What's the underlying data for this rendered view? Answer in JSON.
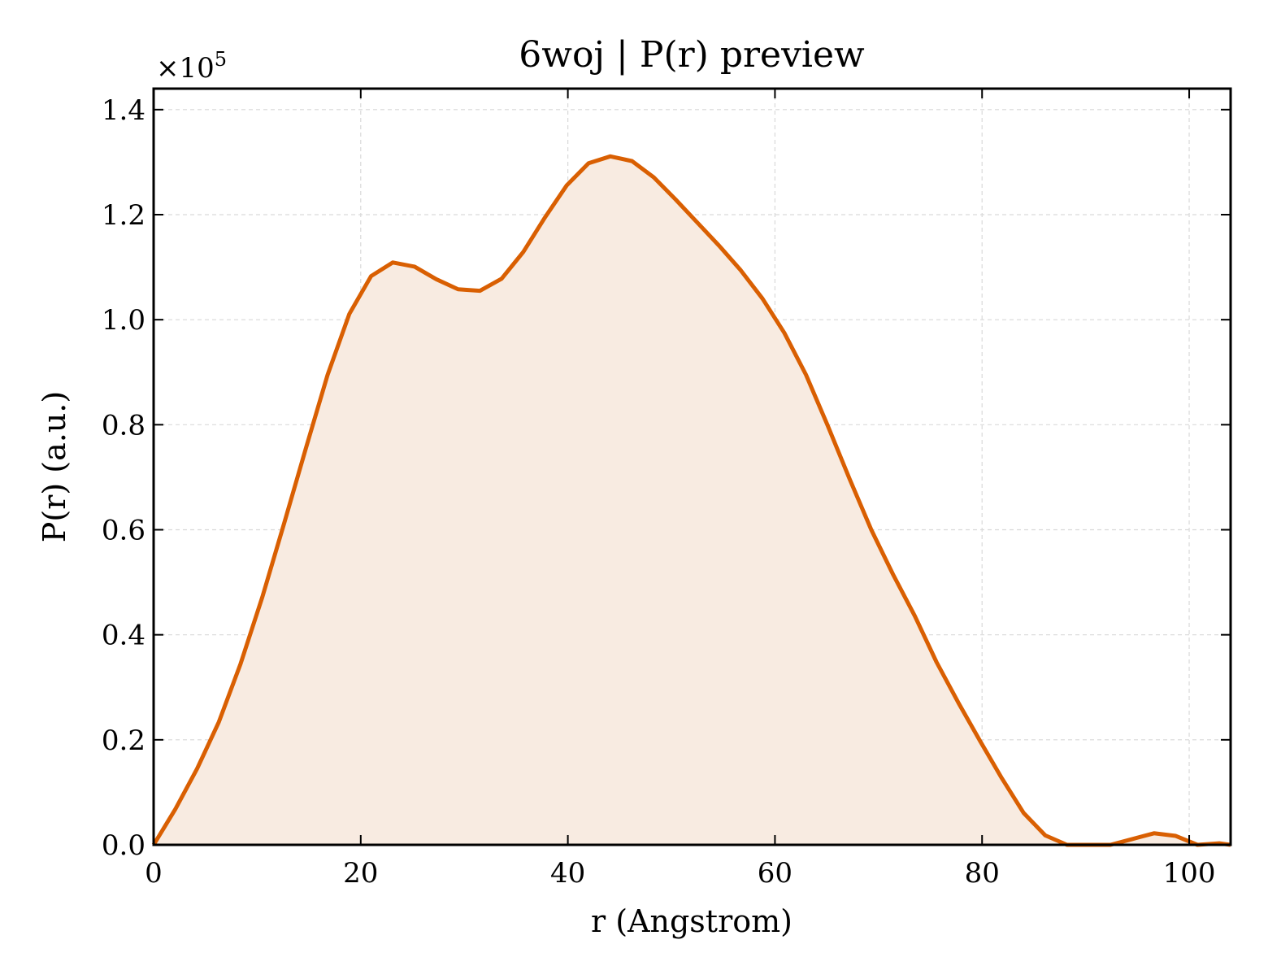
{
  "chart_data": {
    "type": "area",
    "title": "6woj | P(r) preview",
    "xlabel": "r (Angstrom)",
    "ylabel": "P(r) (a.u.)",
    "y_offset_text": "×10",
    "y_offset_exponent": "5",
    "xlim": [
      0,
      104
    ],
    "ylim": [
      0,
      1.44
    ],
    "y_scale_factor": 100000,
    "x_ticks": [
      0,
      20,
      40,
      60,
      80,
      100
    ],
    "x_tick_labels": [
      "0",
      "20",
      "40",
      "60",
      "80",
      "100"
    ],
    "y_ticks": [
      0.0,
      0.2,
      0.4,
      0.6,
      0.8,
      1.0,
      1.2,
      1.4
    ],
    "y_tick_labels": [
      "0.0",
      "0.2",
      "0.4",
      "0.6",
      "0.8",
      "1.0",
      "1.2",
      "1.4"
    ],
    "grid": true,
    "legend": false,
    "colors": {
      "line": "#d95f02",
      "fill": "#f8ebe1",
      "grid": "#d9d9d9"
    },
    "series": [
      {
        "x": [
          0,
          2.1,
          4.2,
          6.3,
          8.4,
          10.5,
          12.6,
          14.7,
          16.8,
          18.9,
          21.0,
          23.1,
          25.2,
          27.3,
          29.4,
          31.5,
          33.6,
          35.7,
          37.8,
          39.9,
          42.0,
          44.1,
          46.2,
          48.3,
          50.4,
          52.5,
          54.6,
          56.7,
          58.8,
          60.9,
          63.0,
          65.1,
          67.2,
          69.3,
          71.4,
          73.5,
          75.6,
          77.7,
          79.8,
          81.9,
          84.0,
          86.1,
          88.2,
          90.3,
          92.4,
          94.5,
          96.6,
          98.7,
          100.8,
          102.9,
          104.0
        ],
        "y": [
          0,
          0.068,
          0.145,
          0.234,
          0.345,
          0.472,
          0.612,
          0.755,
          0.895,
          1.011,
          1.083,
          1.109,
          1.101,
          1.077,
          1.058,
          1.055,
          1.078,
          1.129,
          1.195,
          1.256,
          1.298,
          1.311,
          1.302,
          1.271,
          1.229,
          1.185,
          1.141,
          1.094,
          1.04,
          0.975,
          0.895,
          0.798,
          0.697,
          0.6,
          0.515,
          0.436,
          0.348,
          0.271,
          0.198,
          0.127,
          0.061,
          0.018,
          0.0,
          0.0,
          0.0,
          0.011,
          0.022,
          0.017,
          0.0,
          0.003,
          0.0
        ]
      }
    ]
  }
}
